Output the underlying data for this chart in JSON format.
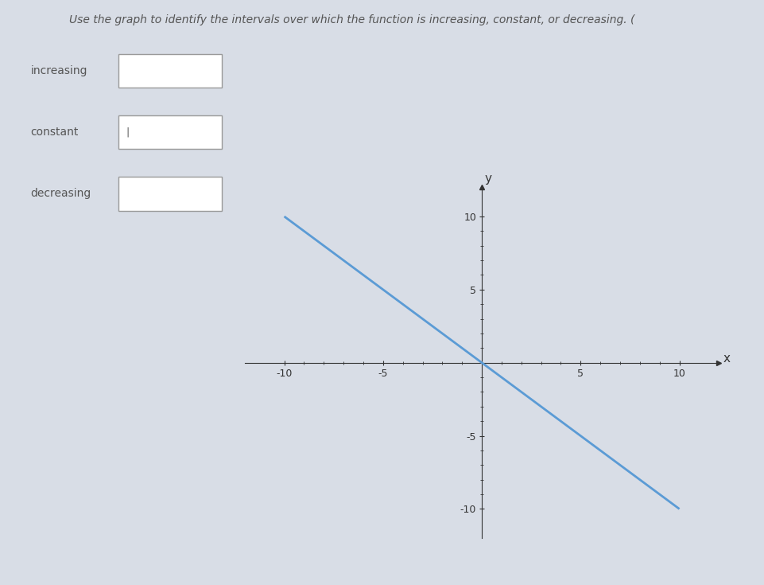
{
  "title": "Use the graph to identify the intervals over which the function is increasing, constant, or decreasing. (",
  "line_x": [
    -10,
    10
  ],
  "line_y": [
    10,
    -10
  ],
  "line_color": "#5b9bd5",
  "line_width": 2.0,
  "xlim": [
    -12,
    12
  ],
  "ylim": [
    -12,
    12
  ],
  "xticks": [
    -10,
    -5,
    5,
    10
  ],
  "yticks": [
    -10,
    -5,
    5,
    10
  ],
  "xlabel": "x",
  "ylabel": "y",
  "background_color": "#d8dde6",
  "axes_color": "#333333",
  "labels": [
    "increasing",
    "constant",
    "decreasing"
  ],
  "font_size_title": 10,
  "font_size_labels": 10,
  "font_size_tick": 9
}
